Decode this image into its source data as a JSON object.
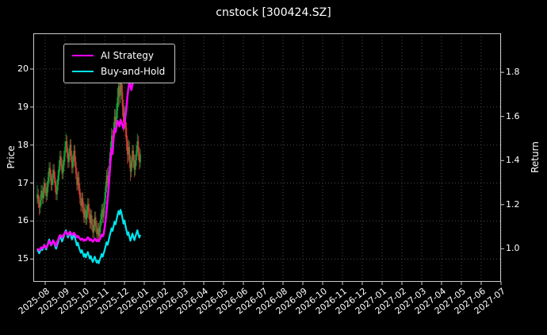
{
  "figure": {
    "background": "#000000",
    "text_color": "#ffffff",
    "grid_color": "#4a4a4a",
    "spine_color": "#cccccc"
  },
  "chart_data": {
    "type": "candlestick+line",
    "title": "cnstock [300424.SZ]",
    "ylabel_left": "Price",
    "ylabel_right": "Return",
    "grid": "dotted",
    "legend_position": "upper-left",
    "x_unit": "months since 2025-08 (0 = 2025-08)",
    "xlim": [
      -0.6,
      23.0
    ],
    "x_tick_labels": [
      "2025-08",
      "2025-09",
      "2025-10",
      "2025-11",
      "2025-12",
      "2026-01",
      "2026-02",
      "2026-03",
      "2026-04",
      "2026-05",
      "2026-06",
      "2026-07",
      "2026-08",
      "2026-09",
      "2026-10",
      "2026-11",
      "2026-12",
      "2027-01",
      "2027-02",
      "2027-03",
      "2027-04",
      "2027-05",
      "2027-06",
      "2027-07"
    ],
    "ylim_left": [
      14.4,
      20.94
    ],
    "left_ticks": [
      15,
      16,
      17,
      18,
      19,
      20
    ],
    "left_tick_labels": [
      "15",
      "16",
      "17",
      "18",
      "19",
      "20"
    ],
    "ylim_right": [
      0.85,
      1.977
    ],
    "right_ticks": [
      1.0,
      1.2,
      1.4,
      1.6,
      1.8
    ],
    "right_tick_labels": [
      "1.0",
      "1.2",
      "1.4",
      "1.6",
      "1.8"
    ],
    "candles": {
      "up_color": "#16a83c",
      "down_color": "#d63a34",
      "x_start": -0.4,
      "x_step": 0.05,
      "ohlc": [
        [
          16.6,
          16.95,
          16.45,
          16.7
        ],
        [
          16.7,
          16.85,
          16.35,
          16.5
        ],
        [
          16.5,
          16.65,
          16.15,
          16.35
        ],
        [
          16.35,
          16.7,
          16.2,
          16.55
        ],
        [
          16.55,
          16.95,
          16.4,
          16.8
        ],
        [
          16.8,
          16.95,
          16.45,
          16.6
        ],
        [
          16.6,
          16.9,
          16.45,
          16.75
        ],
        [
          16.75,
          17.15,
          16.6,
          17.0
        ],
        [
          17.0,
          17.1,
          16.7,
          16.85
        ],
        [
          16.85,
          17.0,
          16.5,
          16.65
        ],
        [
          16.65,
          17.05,
          16.55,
          16.9
        ],
        [
          16.9,
          17.3,
          16.75,
          17.15
        ],
        [
          17.15,
          17.55,
          17.0,
          17.4
        ],
        [
          17.4,
          17.55,
          17.05,
          17.2
        ],
        [
          17.2,
          17.35,
          16.8,
          16.95
        ],
        [
          16.95,
          17.25,
          16.8,
          17.1
        ],
        [
          17.1,
          17.5,
          16.95,
          17.35
        ],
        [
          17.35,
          17.5,
          17.0,
          17.15
        ],
        [
          17.15,
          17.3,
          16.75,
          16.9
        ],
        [
          16.9,
          17.05,
          16.55,
          16.7
        ],
        [
          16.7,
          17.1,
          16.55,
          16.95
        ],
        [
          16.95,
          17.35,
          16.8,
          17.2
        ],
        [
          17.2,
          17.6,
          17.05,
          17.45
        ],
        [
          17.45,
          17.85,
          17.3,
          17.7
        ],
        [
          17.7,
          17.85,
          17.35,
          17.5
        ],
        [
          17.5,
          17.65,
          17.1,
          17.25
        ],
        [
          17.25,
          17.6,
          17.1,
          17.45
        ],
        [
          17.45,
          17.85,
          17.3,
          17.7
        ],
        [
          17.7,
          18.1,
          17.55,
          17.95
        ],
        [
          17.95,
          18.3,
          17.8,
          18.1
        ],
        [
          18.1,
          18.25,
          17.65,
          17.8
        ],
        [
          17.8,
          17.95,
          17.4,
          17.55
        ],
        [
          17.55,
          17.9,
          17.4,
          17.75
        ],
        [
          17.75,
          18.15,
          17.6,
          18.0
        ],
        [
          18.0,
          18.15,
          17.55,
          17.7
        ],
        [
          17.7,
          17.85,
          17.25,
          17.4
        ],
        [
          17.4,
          17.75,
          17.25,
          17.6
        ],
        [
          17.6,
          18.0,
          17.45,
          17.85
        ],
        [
          17.85,
          18.0,
          17.4,
          17.55
        ],
        [
          17.55,
          17.7,
          17.1,
          17.25
        ],
        [
          17.25,
          17.4,
          16.8,
          16.95
        ],
        [
          16.95,
          17.3,
          16.8,
          17.15
        ],
        [
          17.15,
          17.3,
          16.7,
          16.85
        ],
        [
          16.85,
          17.0,
          16.45,
          16.6
        ],
        [
          16.6,
          16.75,
          16.25,
          16.4
        ],
        [
          16.4,
          16.75,
          16.25,
          16.6
        ],
        [
          16.6,
          16.75,
          16.2,
          16.35
        ],
        [
          16.35,
          16.5,
          15.95,
          16.1
        ],
        [
          16.1,
          16.45,
          15.95,
          16.3
        ],
        [
          16.3,
          16.45,
          15.9,
          16.05
        ],
        [
          16.05,
          16.4,
          15.9,
          16.25
        ],
        [
          16.25,
          16.6,
          16.1,
          16.45
        ],
        [
          16.45,
          16.6,
          16.05,
          16.2
        ],
        [
          16.2,
          16.35,
          15.8,
          15.95
        ],
        [
          15.95,
          16.3,
          15.8,
          16.15
        ],
        [
          16.15,
          16.3,
          15.75,
          15.9
        ],
        [
          15.9,
          16.05,
          15.55,
          15.7
        ],
        [
          15.7,
          16.05,
          15.55,
          15.9
        ],
        [
          15.9,
          16.25,
          15.75,
          16.1
        ],
        [
          16.1,
          16.25,
          15.7,
          15.85
        ],
        [
          15.85,
          16.0,
          15.5,
          15.65
        ],
        [
          15.65,
          15.95,
          15.5,
          15.8
        ],
        [
          15.8,
          15.95,
          15.45,
          15.6
        ],
        [
          15.6,
          16.0,
          15.45,
          15.85
        ],
        [
          15.85,
          16.2,
          15.7,
          16.05
        ],
        [
          16.05,
          16.45,
          15.9,
          16.3
        ],
        [
          16.3,
          16.45,
          15.95,
          16.1
        ],
        [
          16.1,
          16.5,
          15.95,
          16.35
        ],
        [
          16.35,
          16.75,
          16.2,
          16.6
        ],
        [
          16.6,
          17.05,
          16.45,
          16.9
        ],
        [
          16.9,
          17.35,
          16.75,
          17.2
        ],
        [
          17.2,
          17.4,
          16.85,
          17.0
        ],
        [
          17.0,
          17.45,
          16.85,
          17.3
        ],
        [
          17.3,
          17.8,
          17.15,
          17.65
        ],
        [
          17.65,
          18.1,
          17.5,
          17.95
        ],
        [
          17.95,
          18.45,
          17.8,
          18.25
        ],
        [
          18.25,
          18.4,
          17.85,
          18.05
        ],
        [
          18.05,
          18.6,
          17.9,
          18.4
        ],
        [
          18.4,
          18.95,
          18.2,
          18.75
        ],
        [
          18.75,
          18.95,
          18.3,
          18.55
        ],
        [
          18.55,
          19.1,
          18.35,
          18.9
        ],
        [
          18.9,
          19.5,
          18.7,
          19.25
        ],
        [
          19.25,
          19.8,
          19.0,
          19.55
        ],
        [
          19.55,
          19.75,
          19.05,
          19.3
        ],
        [
          19.3,
          20.05,
          19.1,
          19.65
        ],
        [
          19.65,
          19.85,
          19.2,
          19.4
        ],
        [
          19.4,
          19.6,
          18.75,
          19.0
        ],
        [
          19.0,
          19.2,
          18.35,
          18.6
        ],
        [
          18.6,
          19.05,
          18.4,
          18.85
        ],
        [
          18.85,
          19.0,
          18.2,
          18.45
        ],
        [
          18.45,
          18.6,
          17.85,
          18.1
        ],
        [
          18.1,
          18.25,
          17.5,
          17.75
        ],
        [
          17.75,
          18.15,
          17.55,
          17.95
        ],
        [
          17.95,
          18.1,
          17.4,
          17.6
        ],
        [
          17.6,
          17.75,
          17.05,
          17.3
        ],
        [
          17.3,
          17.7,
          17.15,
          17.55
        ],
        [
          17.55,
          18.0,
          17.4,
          17.85
        ],
        [
          17.85,
          18.0,
          17.4,
          17.6
        ],
        [
          17.6,
          17.75,
          17.15,
          17.35
        ],
        [
          17.35,
          17.75,
          17.2,
          17.6
        ],
        [
          17.6,
          18.0,
          17.45,
          17.85
        ],
        [
          17.85,
          18.3,
          17.7,
          18.1
        ],
        [
          18.1,
          18.25,
          17.6,
          17.8
        ],
        [
          17.8,
          17.95,
          17.35,
          17.55
        ],
        [
          17.55,
          17.9,
          17.4,
          17.75
        ]
      ]
    },
    "series": [
      {
        "name": "AI Strategy",
        "color": "#ff00ff",
        "axis": "right",
        "x_start": -0.4,
        "x_step": 0.05,
        "values": [
          1.0,
          0.997,
          0.993,
          0.998,
          1.006,
          1.002,
          1.007,
          1.016,
          1.01,
          1.004,
          1.012,
          1.022,
          1.035,
          1.028,
          1.018,
          1.026,
          1.038,
          1.03,
          1.02,
          1.012,
          1.03,
          1.04,
          1.052,
          1.062,
          1.058,
          1.05,
          1.058,
          1.066,
          1.072,
          1.078,
          1.07,
          1.062,
          1.068,
          1.076,
          1.07,
          1.062,
          1.066,
          1.072,
          1.066,
          1.058,
          1.052,
          1.058,
          1.052,
          1.046,
          1.04,
          1.046,
          1.042,
          1.036,
          1.042,
          1.038,
          1.044,
          1.052,
          1.046,
          1.038,
          1.044,
          1.038,
          1.032,
          1.038,
          1.046,
          1.04,
          1.034,
          1.04,
          1.034,
          1.042,
          1.052,
          1.064,
          1.056,
          1.066,
          1.095,
          1.13,
          1.175,
          1.225,
          1.28,
          1.34,
          1.4,
          1.455,
          1.43,
          1.5,
          1.545,
          1.53,
          1.555,
          1.58,
          1.57,
          1.555,
          1.585,
          1.575,
          1.56,
          1.545,
          1.57,
          1.6,
          1.64,
          1.69,
          1.73,
          1.755,
          1.74,
          1.72,
          1.745,
          1.765,
          1.75
        ]
      },
      {
        "name": "Buy-and-Hold",
        "color": "#00e5ee",
        "axis": "right",
        "derived": "close / base_price",
        "base_price": 16.7
      }
    ]
  }
}
